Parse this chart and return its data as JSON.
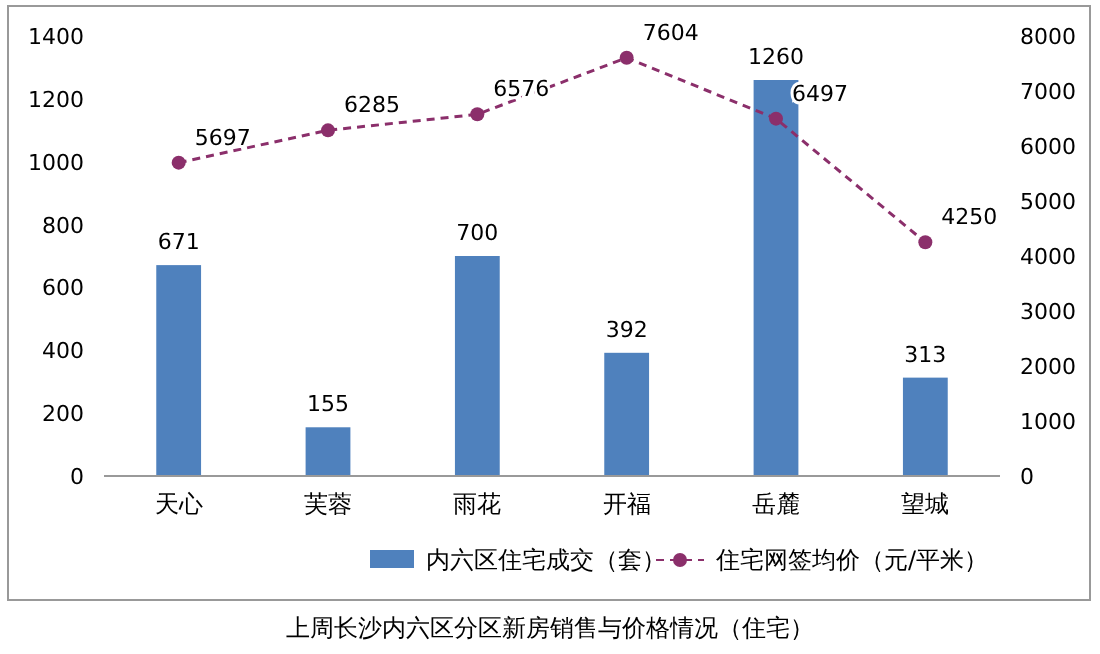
{
  "chart_data": {
    "type": "bar",
    "title": "上周长沙内六区分区新房销售与价格情况（住宅）",
    "categories": [
      "天心",
      "芙蓉",
      "雨花",
      "开福",
      "岳麓",
      "望城"
    ],
    "series": [
      {
        "name": "内六区住宅成交（套）",
        "color": "#4f81bd",
        "values": [
          671,
          155,
          700,
          392,
          1260,
          313
        ]
      },
      {
        "name": "住宅网签均价（元/平米）",
        "type": "line",
        "axis": "y2",
        "color": "#8b2f6b",
        "line_style": "dashed",
        "marker": "circle",
        "values": [
          5697,
          6285,
          6576,
          7604,
          6497,
          4250
        ]
      }
    ],
    "ylim": [
      0,
      1400
    ],
    "yticks": [
      0,
      200,
      400,
      600,
      800,
      1000,
      1200,
      1400
    ],
    "y2lim": [
      0,
      8000
    ],
    "y2ticks": [
      0,
      1000,
      2000,
      3000,
      4000,
      5000,
      6000,
      7000,
      8000
    ],
    "data_labels": true,
    "legend": "bottom",
    "grid": false
  }
}
